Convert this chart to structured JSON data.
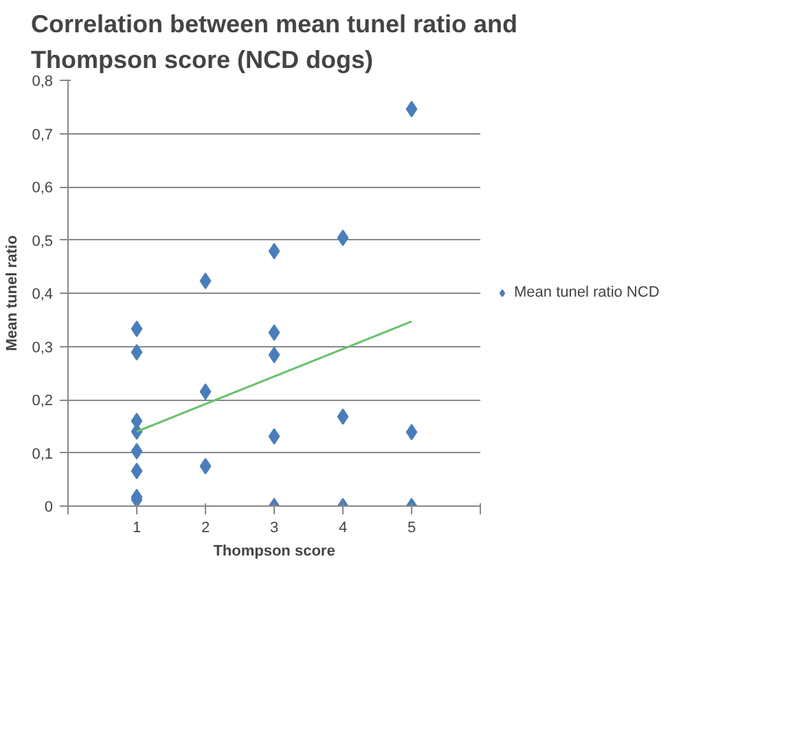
{
  "chart_data": {
    "type": "scatter",
    "title": "Correlation between mean tunel ratio and Thompson score (NCD dogs)",
    "xlabel": "Thompson score",
    "ylabel": "Mean tunel ratio",
    "xlim": [
      0,
      6
    ],
    "xticks": [
      {
        "value": 0,
        "label": null
      },
      1,
      2,
      3,
      4,
      5,
      {
        "value": 6,
        "label": null
      }
    ],
    "ylim": [
      0,
      0.8
    ],
    "yticks": [
      {
        "value": 0,
        "label": "0"
      },
      {
        "value": 0.1,
        "label": "0,1"
      },
      {
        "value": 0.2,
        "label": "0,2"
      },
      {
        "value": 0.3,
        "label": "0,3"
      },
      {
        "value": 0.4,
        "label": "0,4"
      },
      {
        "value": 0.5,
        "label": "0,5"
      },
      {
        "value": 0.6,
        "label": "0,6"
      },
      {
        "value": 0.7,
        "label": "0,7"
      },
      {
        "value": 0.8,
        "label": "0,8"
      }
    ],
    "grid": "y",
    "legend": "right",
    "series": [
      {
        "name": "Mean tunel ratio NCD",
        "color": "#4a7ebb",
        "marker": "diamond",
        "x": [
          1,
          1,
          1,
          1,
          1,
          1,
          1,
          1,
          2,
          2,
          2,
          3,
          3,
          3,
          3,
          3,
          4,
          4,
          4,
          5,
          5,
          5
        ],
        "values": [
          0.333,
          0.289,
          0.16,
          0.14,
          0.103,
          0.066,
          0.017,
          0.012,
          0.423,
          0.215,
          0.075,
          0.479,
          0.326,
          0.284,
          0.131,
          0,
          0.504,
          0.168,
          0,
          0.746,
          0.139,
          0
        ]
      },
      {
        "type": "line",
        "color": "#66c266",
        "x": [
          1,
          5
        ],
        "values": [
          0.14,
          0.347
        ]
      }
    ]
  }
}
